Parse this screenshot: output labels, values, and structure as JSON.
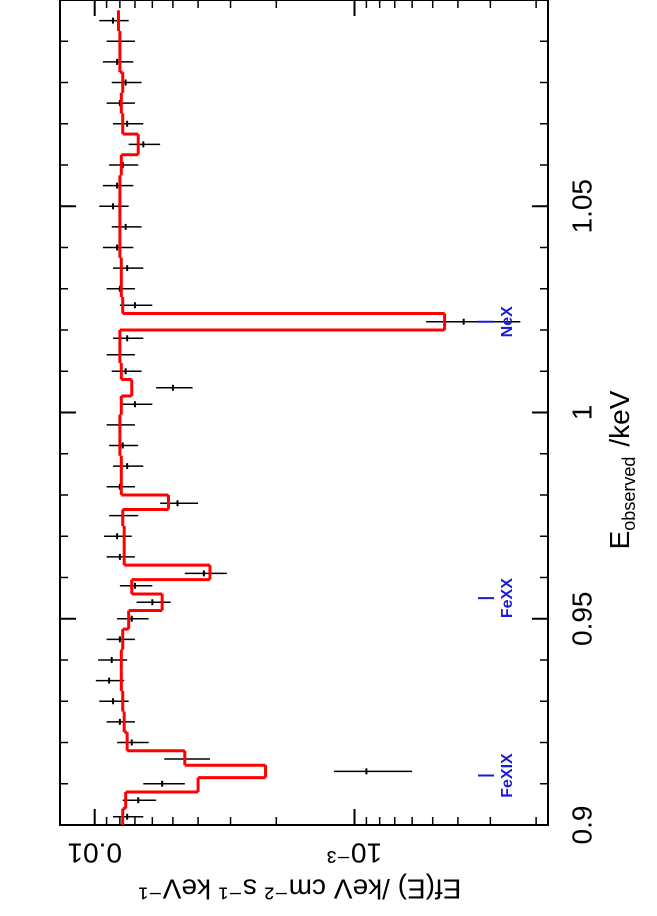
{
  "chart_data": {
    "type": "spectrum",
    "xlabel": "E",
    "xlabel_sub": "observed",
    "xlabel_unit": "/keV",
    "ylabel": "Ef(E) /keV cm⁻² s⁻¹ keV⁻¹",
    "xlim": [
      0.9,
      1.1
    ],
    "xticks": [
      0.9,
      0.95,
      1,
      1.05
    ],
    "xminorticks": [
      0.91,
      0.92,
      0.93,
      0.94,
      0.96,
      0.97,
      0.98,
      0.99,
      1.01,
      1.02,
      1.03,
      1.04,
      1.06,
      1.07,
      1.08,
      1.09
    ],
    "ylim": [
      0.00018,
      0.0136
    ],
    "yticks": [
      0.01,
      {
        "value": 0.001,
        "label": "10⁻³"
      }
    ],
    "ylog": true,
    "x": [
      0.902,
      0.906,
      0.91,
      0.913,
      0.916,
      0.92,
      0.925,
      0.93,
      0.935,
      0.94,
      0.945,
      0.95,
      0.954,
      0.958,
      0.961,
      0.965,
      0.97,
      0.975,
      0.978,
      0.982,
      0.987,
      0.992,
      0.997,
      1.002,
      1.006,
      1.01,
      1.014,
      1.018,
      1.022,
      1.026,
      1.03,
      1.035,
      1.04,
      1.045,
      1.05,
      1.055,
      1.06,
      1.065,
      1.07,
      1.075,
      1.08,
      1.085,
      1.09,
      1.095
    ],
    "series": [
      {
        "name": "data",
        "color": "#000000",
        "values": [
          0.0075,
          0.0068,
          0.0055,
          0.0009,
          0.0045,
          0.0072,
          0.008,
          0.0085,
          0.0088,
          0.0086,
          0.008,
          0.0072,
          0.006,
          0.007,
          0.0038,
          0.008,
          0.0082,
          0.0078,
          0.0048,
          0.008,
          0.0075,
          0.0078,
          0.008,
          0.007,
          0.005,
          0.0076,
          0.008,
          0.0075,
          0.00038,
          0.007,
          0.008,
          0.0075,
          0.0082,
          0.0076,
          0.0085,
          0.0082,
          0.0078,
          0.0065,
          0.0075,
          0.008,
          0.0076,
          0.0082,
          0.008,
          0.0085
        ],
        "errors": [
          0.001,
          0.001,
          0.001,
          0.0003,
          0.0009,
          0.001,
          0.001,
          0.0011,
          0.0011,
          0.0011,
          0.001,
          0.001,
          0.0009,
          0.001,
          0.0007,
          0.001,
          0.001,
          0.001,
          0.0008,
          0.001,
          0.001,
          0.001,
          0.001,
          0.001,
          0.0008,
          0.001,
          0.001,
          0.001,
          0.00015,
          0.001,
          0.001,
          0.001,
          0.0011,
          0.001,
          0.0011,
          0.0011,
          0.001,
          0.0009,
          0.001,
          0.001,
          0.001,
          0.0011,
          0.001,
          0.0011
        ]
      },
      {
        "name": "model",
        "color": "#ff0000",
        "values": [
          0.0078,
          0.0076,
          0.004,
          0.0022,
          0.0045,
          0.0075,
          0.0077,
          0.0078,
          0.0079,
          0.0079,
          0.0078,
          0.0074,
          0.0055,
          0.0072,
          0.0036,
          0.0077,
          0.0077,
          0.0078,
          0.0052,
          0.0079,
          0.0079,
          0.008,
          0.008,
          0.0079,
          0.0072,
          0.0079,
          0.008,
          0.008,
          0.00045,
          0.0078,
          0.0079,
          0.0079,
          0.008,
          0.008,
          0.008,
          0.008,
          0.0079,
          0.0068,
          0.0078,
          0.0079,
          0.0078,
          0.008,
          0.008,
          0.0081
        ]
      }
    ],
    "annotation_color": "#1a1adb",
    "annotations": [
      {
        "text": "FeXIX",
        "x": 0.912
      },
      {
        "text": "FeXX",
        "x": 0.955
      },
      {
        "text": "NeX",
        "x": 1.022
      }
    ]
  }
}
